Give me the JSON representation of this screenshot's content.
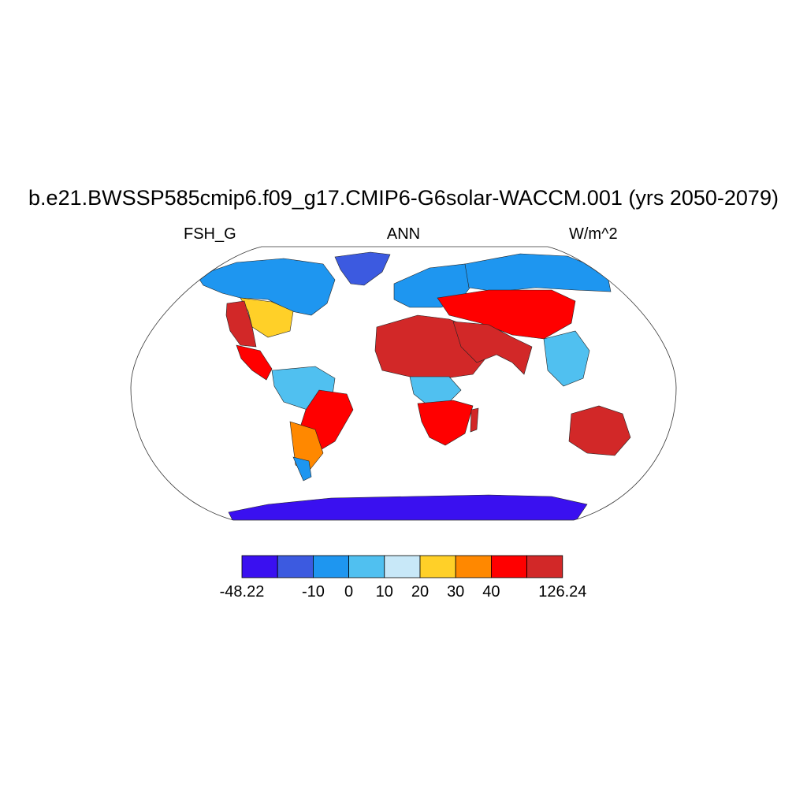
{
  "title": "b.e21.BWSSP585cmip6.f09_g17.CMIP6-G6solar-WACCM.001 (yrs 2050-2079)",
  "left_label": "FSH_G",
  "center_label": "ANN",
  "right_label": "W/m^2",
  "colorbar": {
    "colors": [
      "#3a10f0",
      "#3c5ae0",
      "#1e96f0",
      "#50c0f0",
      "#c8e8f8",
      "#ffd028",
      "#ff8800",
      "#ff0000",
      "#d22828"
    ],
    "labels": [
      "-48.22",
      "-10",
      "0",
      "10",
      "20",
      "30",
      "40",
      "126.24"
    ]
  },
  "regions": [
    {
      "name": "greenland",
      "color": "#3c5ae0"
    },
    {
      "name": "canada",
      "color": "#1e96f0"
    },
    {
      "name": "us-plains",
      "color": "#ffd028"
    },
    {
      "name": "us-southwest",
      "color": "#d22828"
    },
    {
      "name": "central-america",
      "color": "#ff0000"
    },
    {
      "name": "amazon",
      "color": "#50c0f0"
    },
    {
      "name": "brazil-east",
      "color": "#ff0000"
    },
    {
      "name": "south-america-south",
      "color": "#ff8800"
    },
    {
      "name": "patagonia",
      "color": "#1e96f0"
    },
    {
      "name": "sahara",
      "color": "#d22828"
    },
    {
      "name": "central-africa",
      "color": "#50c0f0"
    },
    {
      "name": "southern-africa",
      "color": "#ff0000"
    },
    {
      "name": "madagascar",
      "color": "#d22828"
    },
    {
      "name": "europe",
      "color": "#1e96f0"
    },
    {
      "name": "siberia",
      "color": "#1e96f0"
    },
    {
      "name": "central-asia",
      "color": "#ff0000"
    },
    {
      "name": "arabia-india",
      "color": "#d22828"
    },
    {
      "name": "southeast-asia",
      "color": "#50c0f0"
    },
    {
      "name": "australia",
      "color": "#d22828"
    },
    {
      "name": "antarctica",
      "color": "#3a10f0"
    }
  ]
}
